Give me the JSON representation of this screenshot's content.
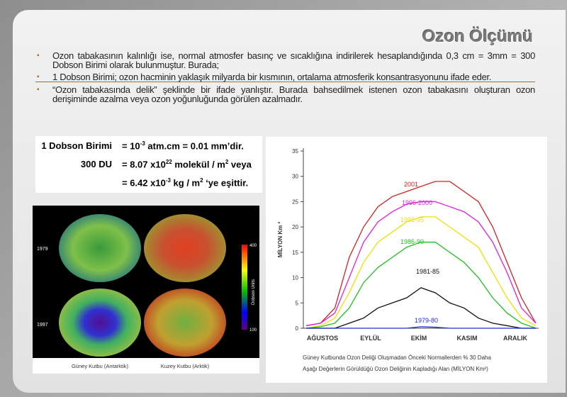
{
  "title": "Ozon Ölçümü",
  "bullets": [
    "Ozon tabakasının kalınlığı ise, normal atmosfer basınç ve sıcaklığına indirilerek hesaplandığında 0,3 cm = 3mm = 300 Dobson Birimi olarak bulunmuştur. Burada;",
    "1 Dobson Birimi; ozon hacminin yaklaşık milyarda bir kısmının, ortalama atmosferik konsantrasyonunu ifade eder.",
    "“Ozon tabakasında delik” şeklinde bir ifade yanlıştır. Burada bahsedilmek istenen ozon tabakasını oluşturan ozon derişiminde azalma veya ozon yoğunluğunda görülen azalmadır."
  ],
  "formula": {
    "rows": [
      {
        "label": "1 Dobson Birimi",
        "parts": [
          "= 10",
          "-3",
          " atm.cm = 0.01 mm’dir."
        ]
      },
      {
        "label": "300 DU",
        "parts": [
          "= 8.07 x10",
          "22",
          " molekül / m",
          "2",
          " veya"
        ]
      },
      {
        "label": "",
        "parts": [
          "= 6.42 x10",
          "-3",
          "  kg / m",
          "2",
          " ‘ye eşittir."
        ]
      }
    ]
  },
  "map_figure": {
    "years": [
      "1979",
      "1997"
    ],
    "captions": [
      "Güney Kutbu (Antarktik)",
      "Kuzey Kutbu (Arktik)"
    ],
    "scale_title": "Dobson Units",
    "scale_labels": [
      "400",
      "100"
    ]
  },
  "chart_data": {
    "type": "line",
    "ylabel": "MİLYON Km ²",
    "x_labels": [
      "AĞUSTOS",
      "EYLÜL",
      "EKİM",
      "KASIM",
      "ARALIK"
    ],
    "caption": [
      "Güney Kutbunda Ozon Deliği Oluşmadan Önceki Normallerden % 30 Daha",
      "Aşağı Değerlerin Görüldüğü Ozon Deliğinin Kapladığı Alan (MİLYON Km²)"
    ],
    "ylim": [
      0,
      35
    ],
    "yticks": [
      0,
      5,
      10,
      15,
      20,
      25,
      30,
      35
    ],
    "series": [
      {
        "name": "2001",
        "color": "#d62020",
        "values": [
          0.5,
          1,
          4,
          14,
          20,
          24,
          26,
          27,
          28,
          29,
          29,
          27,
          25,
          20,
          13,
          6,
          1
        ]
      },
      {
        "name": "1996-2000",
        "color": "#e020e0",
        "values": [
          0.5,
          1,
          3,
          10,
          17,
          21,
          23,
          24.5,
          25,
          25,
          24,
          23,
          21,
          17,
          11,
          4,
          1
        ]
      },
      {
        "name": "1991-95",
        "color": "#f0e000",
        "values": [
          0,
          0.5,
          2,
          7,
          13,
          17,
          19,
          21,
          22,
          22,
          20,
          18,
          16,
          11,
          6,
          2,
          0.5
        ]
      },
      {
        "name": "1986-90",
        "color": "#20c020",
        "values": [
          0,
          0.3,
          1,
          4,
          9,
          12,
          14,
          16,
          17,
          17,
          15,
          13,
          10,
          6,
          3,
          1,
          0
        ]
      },
      {
        "name": "1981-85",
        "color": "#111111",
        "values": [
          0,
          0,
          0,
          1,
          2,
          4,
          5,
          6,
          8,
          7,
          5,
          4,
          2,
          1,
          0.5,
          0,
          0
        ]
      },
      {
        "name": "1979-80",
        "color": "#2030d0",
        "values": [
          0,
          0,
          0,
          0,
          0,
          0,
          0,
          0,
          0.3,
          0.2,
          0,
          0,
          0,
          0,
          0,
          0,
          0
        ]
      }
    ]
  }
}
